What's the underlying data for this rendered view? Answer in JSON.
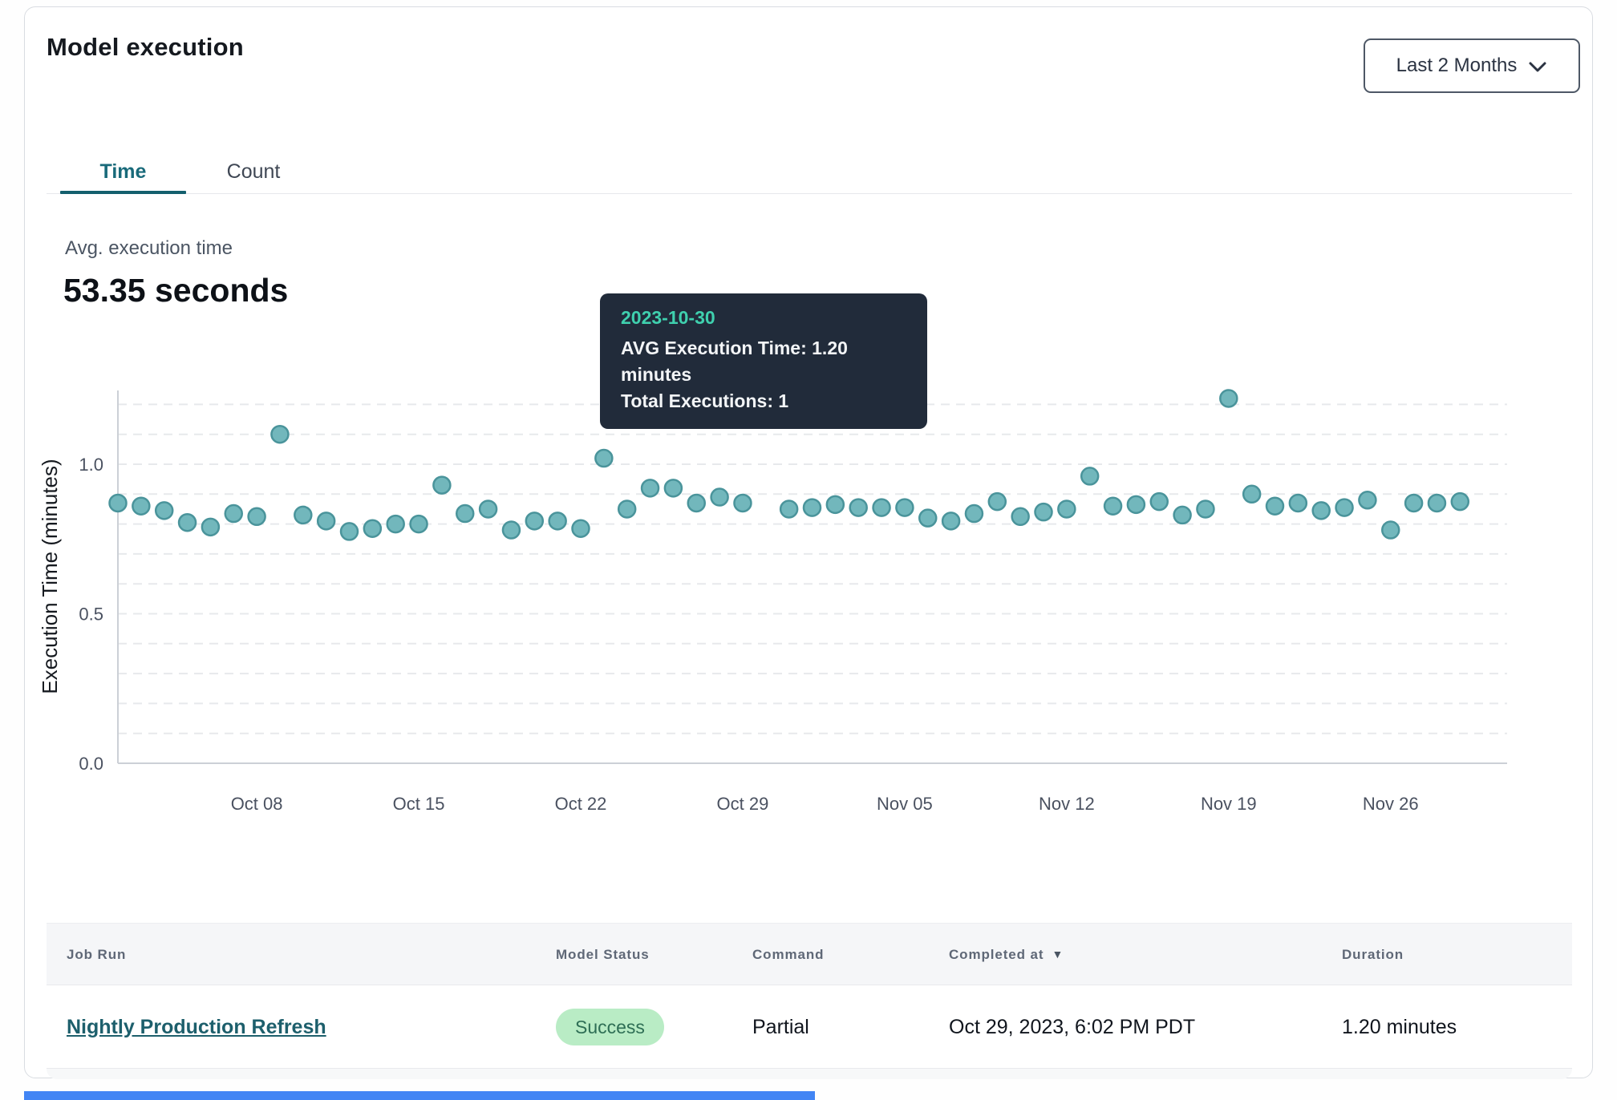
{
  "header": {
    "title": "Model execution",
    "range_selector_label": "Last 2 Months"
  },
  "tabs": [
    {
      "label": "Time",
      "active": true
    },
    {
      "label": "Count",
      "active": false
    }
  ],
  "summary": {
    "label": "Avg. execution time",
    "value": "53.35 seconds"
  },
  "tooltip": {
    "date": "2023-10-30",
    "line1": "AVG Execution Time: 1.20 minutes",
    "line2": "Total Executions: 1"
  },
  "chart_data": {
    "type": "scatter",
    "title": "",
    "xlabel": "",
    "ylabel": "Execution Time (minutes)",
    "ylim": [
      0,
      1.26
    ],
    "y_ticks": [
      0.0,
      0.5,
      1.0
    ],
    "grid": "horizontal dashed lines every 0.1, y-axis and x-axis solid",
    "legend": "none",
    "x_tick_labels": [
      "Oct 08",
      "Oct 15",
      "Oct 22",
      "Oct 29",
      "Nov 05",
      "Nov 12",
      "Nov 19",
      "Nov 26"
    ],
    "highlight_date": "2023-10-30",
    "points": [
      {
        "date": "2023-10-02",
        "value": 0.87
      },
      {
        "date": "2023-10-03",
        "value": 0.86
      },
      {
        "date": "2023-10-04",
        "value": 0.845
      },
      {
        "date": "2023-10-05",
        "value": 0.805
      },
      {
        "date": "2023-10-06",
        "value": 0.79
      },
      {
        "date": "2023-10-07",
        "value": 0.835
      },
      {
        "date": "2023-10-08",
        "value": 0.825
      },
      {
        "date": "2023-10-09",
        "value": 1.1
      },
      {
        "date": "2023-10-10",
        "value": 0.83
      },
      {
        "date": "2023-10-11",
        "value": 0.81
      },
      {
        "date": "2023-10-12",
        "value": 0.775
      },
      {
        "date": "2023-10-13",
        "value": 0.785
      },
      {
        "date": "2023-10-14",
        "value": 0.8
      },
      {
        "date": "2023-10-15",
        "value": 0.8
      },
      {
        "date": "2023-10-16",
        "value": 0.93
      },
      {
        "date": "2023-10-17",
        "value": 0.835
      },
      {
        "date": "2023-10-18",
        "value": 0.85
      },
      {
        "date": "2023-10-19",
        "value": 0.78
      },
      {
        "date": "2023-10-20",
        "value": 0.81
      },
      {
        "date": "2023-10-21",
        "value": 0.81
      },
      {
        "date": "2023-10-22",
        "value": 0.785
      },
      {
        "date": "2023-10-23",
        "value": 1.02
      },
      {
        "date": "2023-10-24",
        "value": 0.85
      },
      {
        "date": "2023-10-25",
        "value": 0.92
      },
      {
        "date": "2023-10-26",
        "value": 0.92
      },
      {
        "date": "2023-10-27",
        "value": 0.87
      },
      {
        "date": "2023-10-28",
        "value": 0.89
      },
      {
        "date": "2023-10-29",
        "value": 0.87
      },
      {
        "date": "2023-10-30",
        "value": 1.2
      },
      {
        "date": "2023-10-31",
        "value": 0.85
      },
      {
        "date": "2023-11-01",
        "value": 0.855
      },
      {
        "date": "2023-11-02",
        "value": 0.865
      },
      {
        "date": "2023-11-03",
        "value": 0.855
      },
      {
        "date": "2023-11-04",
        "value": 0.855
      },
      {
        "date": "2023-11-05",
        "value": 0.855
      },
      {
        "date": "2023-11-06",
        "value": 0.82
      },
      {
        "date": "2023-11-07",
        "value": 0.81
      },
      {
        "date": "2023-11-08",
        "value": 0.835
      },
      {
        "date": "2023-11-09",
        "value": 0.875
      },
      {
        "date": "2023-11-10",
        "value": 0.825
      },
      {
        "date": "2023-11-11",
        "value": 0.84
      },
      {
        "date": "2023-11-12",
        "value": 0.85
      },
      {
        "date": "2023-11-13",
        "value": 0.96
      },
      {
        "date": "2023-11-14",
        "value": 0.86
      },
      {
        "date": "2023-11-15",
        "value": 0.865
      },
      {
        "date": "2023-11-16",
        "value": 0.875
      },
      {
        "date": "2023-11-17",
        "value": 0.83
      },
      {
        "date": "2023-11-18",
        "value": 0.85
      },
      {
        "date": "2023-11-19",
        "value": 1.22
      },
      {
        "date": "2023-11-20",
        "value": 0.9
      },
      {
        "date": "2023-11-21",
        "value": 0.86
      },
      {
        "date": "2023-11-22",
        "value": 0.87
      },
      {
        "date": "2023-11-23",
        "value": 0.845
      },
      {
        "date": "2023-11-24",
        "value": 0.855
      },
      {
        "date": "2023-11-25",
        "value": 0.88
      },
      {
        "date": "2023-11-26",
        "value": 0.78
      },
      {
        "date": "2023-11-27",
        "value": 0.87
      },
      {
        "date": "2023-11-28",
        "value": 0.87
      },
      {
        "date": "2023-11-29",
        "value": 0.875
      }
    ]
  },
  "table": {
    "columns": [
      "Job Run",
      "Model Status",
      "Command",
      "Completed at",
      "Duration"
    ],
    "sorted_column": "Completed at",
    "sort_direction": "desc",
    "rows": [
      {
        "job_run": "Nightly Production Refresh",
        "model_status": "Success",
        "command": "Partial",
        "completed_at": "Oct 29, 2023, 6:02 PM PDT",
        "duration": "1.20 minutes"
      }
    ]
  },
  "colors": {
    "accent_teal": "#196a7a",
    "tab_underline": "#135f6d",
    "point_fill": "#72b7bc",
    "point_stroke": "#4a949b",
    "highlight_fill": "#43858f",
    "highlight_stroke": "#3a767f",
    "tooltip_bg": "#212b3a",
    "tooltip_date": "#3fd0ae",
    "badge_bg": "#b9ecc5",
    "badge_text": "#2e6e55",
    "link": "#1d5f6c",
    "gridline": "#e7e9ec",
    "axis_line": "#ccd0d6",
    "tick_text": "#4a5160",
    "progress_blue": "#4285f4"
  }
}
